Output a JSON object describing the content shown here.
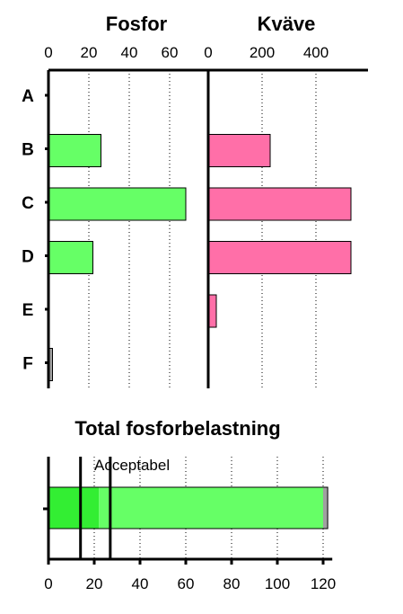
{
  "chart_data": [
    {
      "type": "bar",
      "orientation": "horizontal",
      "title": "Fosfor",
      "categories": [
        "A",
        "B",
        "C",
        "D",
        "E",
        "F"
      ],
      "values": [
        0,
        26,
        68,
        22,
        0,
        2
      ],
      "bar_colors": [
        "#66ff66",
        "#66ff66",
        "#66ff66",
        "#66ff66",
        "#66ff66",
        "#a0a0a0"
      ],
      "xticks": [
        "0",
        "20",
        "40",
        "60"
      ],
      "xlim": [
        0,
        70
      ],
      "grid": true
    },
    {
      "type": "bar",
      "orientation": "horizontal",
      "title": "Kväve",
      "categories": [
        "A",
        "B",
        "C",
        "D",
        "E",
        "F"
      ],
      "values": [
        0,
        230,
        530,
        530,
        30,
        0
      ],
      "bar_colors": [
        "#ff6fa8",
        "#ff6fa8",
        "#ff6fa8",
        "#ff6fa8",
        "#ff6fa8",
        "#ff6fa8"
      ],
      "xticks": [
        "0",
        "200",
        "400"
      ],
      "xlim": [
        0,
        600
      ],
      "grid": true
    },
    {
      "type": "bar",
      "orientation": "horizontal",
      "stacked": true,
      "title": "Total fosforbelastning",
      "segments": [
        {
          "value": 22,
          "color": "#33ee33"
        },
        {
          "value": 98,
          "color": "#66ff66"
        },
        {
          "value": 2,
          "color": "#a0a0a0"
        }
      ],
      "reference_lines": [
        14,
        27
      ],
      "annotation": "Acceptabel",
      "xticks": [
        "0",
        "20",
        "40",
        "60",
        "80",
        "100",
        "120"
      ],
      "xlim": [
        0,
        124
      ],
      "grid": true
    }
  ]
}
